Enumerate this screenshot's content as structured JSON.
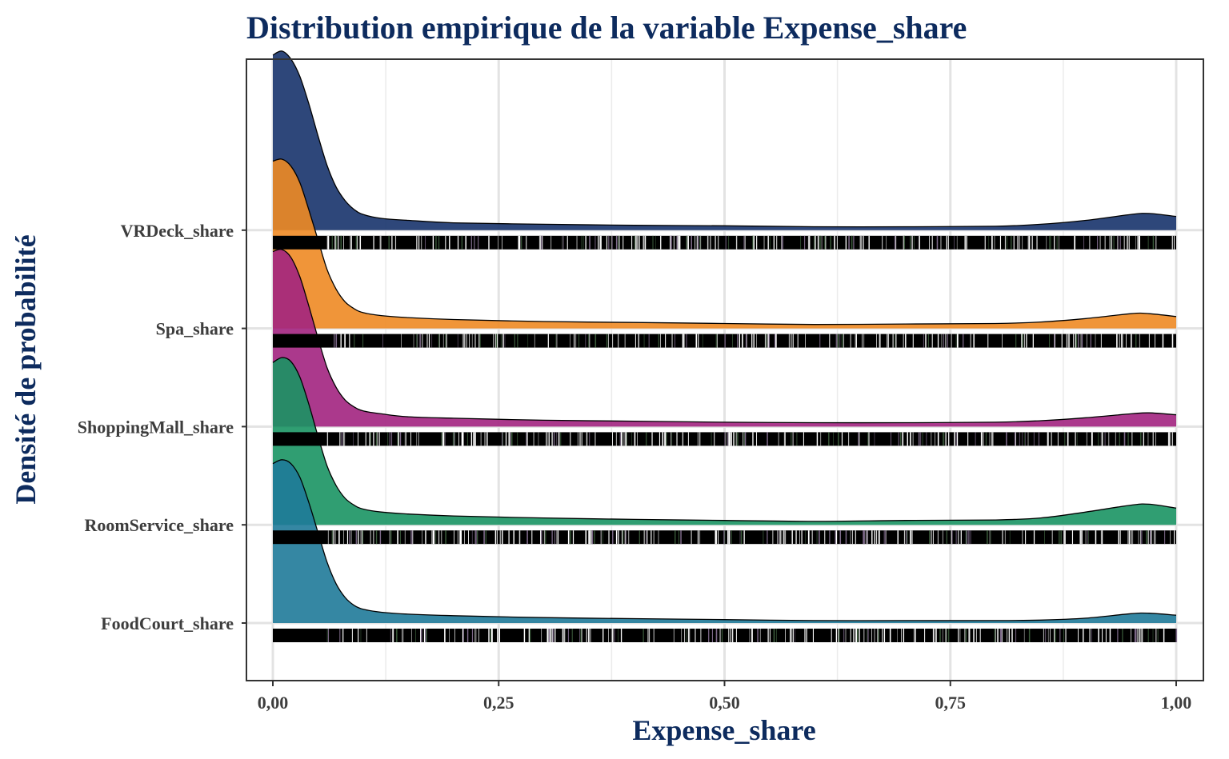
{
  "chart_data": {
    "type": "ridgeline-density",
    "title": "Distribution empirique de la variable Expense_share",
    "xlabel": "Expense_share",
    "ylabel": "Densité de probabilité",
    "xlim": [
      0,
      1
    ],
    "x_ticks": [
      {
        "value": 0,
        "label": "0,00"
      },
      {
        "value": 0.25,
        "label": "0,25"
      },
      {
        "value": 0.5,
        "label": "0,50"
      },
      {
        "value": 0.75,
        "label": "0,75"
      },
      {
        "value": 1,
        "label": "1,00"
      }
    ],
    "grid": true,
    "rug": true,
    "x": [
      0,
      0.01,
      0.02,
      0.03,
      0.04,
      0.05,
      0.06,
      0.07,
      0.08,
      0.09,
      0.1,
      0.12,
      0.15,
      0.2,
      0.3,
      0.4,
      0.5,
      0.6,
      0.7,
      0.8,
      0.85,
      0.9,
      0.95,
      0.97,
      1.0
    ],
    "series": [
      {
        "name": "FoodCourt_share",
        "color": "#1f7a99",
        "density": [
          1.62,
          1.66,
          1.62,
          1.48,
          1.22,
          0.92,
          0.62,
          0.4,
          0.26,
          0.18,
          0.14,
          0.11,
          0.09,
          0.075,
          0.055,
          0.045,
          0.035,
          0.025,
          0.025,
          0.025,
          0.03,
          0.05,
          0.095,
          0.1,
          0.08
        ]
      },
      {
        "name": "RoomService_share",
        "color": "#1a9463",
        "density": [
          1.65,
          1.7,
          1.66,
          1.5,
          1.22,
          0.9,
          0.6,
          0.4,
          0.27,
          0.2,
          0.16,
          0.13,
          0.11,
          0.09,
          0.07,
          0.055,
          0.045,
          0.035,
          0.045,
          0.05,
          0.07,
          0.13,
          0.2,
          0.21,
          0.17
        ]
      },
      {
        "name": "ShoppingMall_share",
        "color": "#a2237f",
        "density": [
          1.78,
          1.8,
          1.72,
          1.52,
          1.22,
          0.9,
          0.6,
          0.4,
          0.27,
          0.2,
          0.16,
          0.13,
          0.1,
          0.085,
          0.065,
          0.055,
          0.045,
          0.04,
          0.04,
          0.045,
          0.06,
          0.09,
          0.13,
          0.14,
          0.12
        ]
      },
      {
        "name": "Spa_share",
        "color": "#ee8a24",
        "density": [
          1.7,
          1.72,
          1.65,
          1.48,
          1.2,
          0.9,
          0.6,
          0.4,
          0.27,
          0.2,
          0.16,
          0.13,
          0.11,
          0.09,
          0.07,
          0.06,
          0.05,
          0.04,
          0.045,
          0.05,
          0.065,
          0.1,
          0.15,
          0.15,
          0.12
        ]
      },
      {
        "name": "VRDeck_share",
        "color": "#17336b",
        "density": [
          1.78,
          1.82,
          1.74,
          1.56,
          1.28,
          0.96,
          0.66,
          0.44,
          0.3,
          0.21,
          0.16,
          0.12,
          0.1,
          0.075,
          0.06,
          0.05,
          0.045,
          0.035,
          0.035,
          0.04,
          0.06,
          0.1,
          0.16,
          0.17,
          0.14
        ]
      }
    ]
  }
}
